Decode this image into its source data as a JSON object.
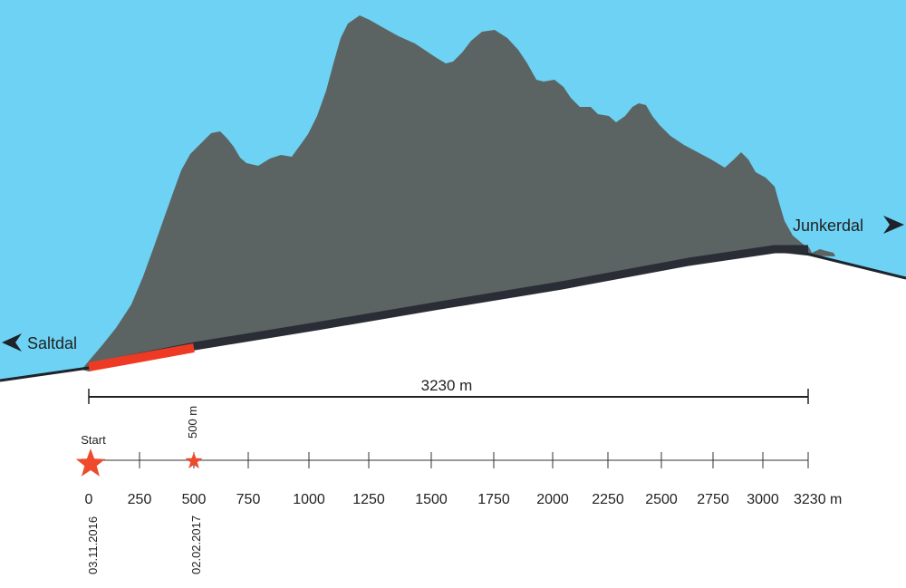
{
  "labels": {
    "left_destination": "Saltdal",
    "right_destination": "Junkerdal",
    "total_length": "3230 m",
    "start_label": "Start",
    "progress_label": "500 m"
  },
  "scale": {
    "ticks": [
      "0",
      "250",
      "500",
      "750",
      "1000",
      "1250",
      "1500",
      "1750",
      "2000",
      "2250",
      "2500",
      "2750",
      "3000",
      "3230 m"
    ],
    "tick_values": [
      0,
      250,
      500,
      750,
      1000,
      1250,
      1500,
      1750,
      2000,
      2250,
      2500,
      2750,
      3000,
      3230
    ],
    "max": 3230
  },
  "dates": {
    "start_date": "03.11.2016",
    "progress_date": "02.02.2017"
  },
  "progress": {
    "excavated_m": 500,
    "total_m": 3230
  },
  "colors": {
    "sky": "#6dd2f3",
    "mountain": "#5b6463",
    "tunnel": "#2a2d35",
    "excavated": "#ee3a24",
    "star": "#ee4a2b",
    "ground_line": "#1e222a"
  }
}
